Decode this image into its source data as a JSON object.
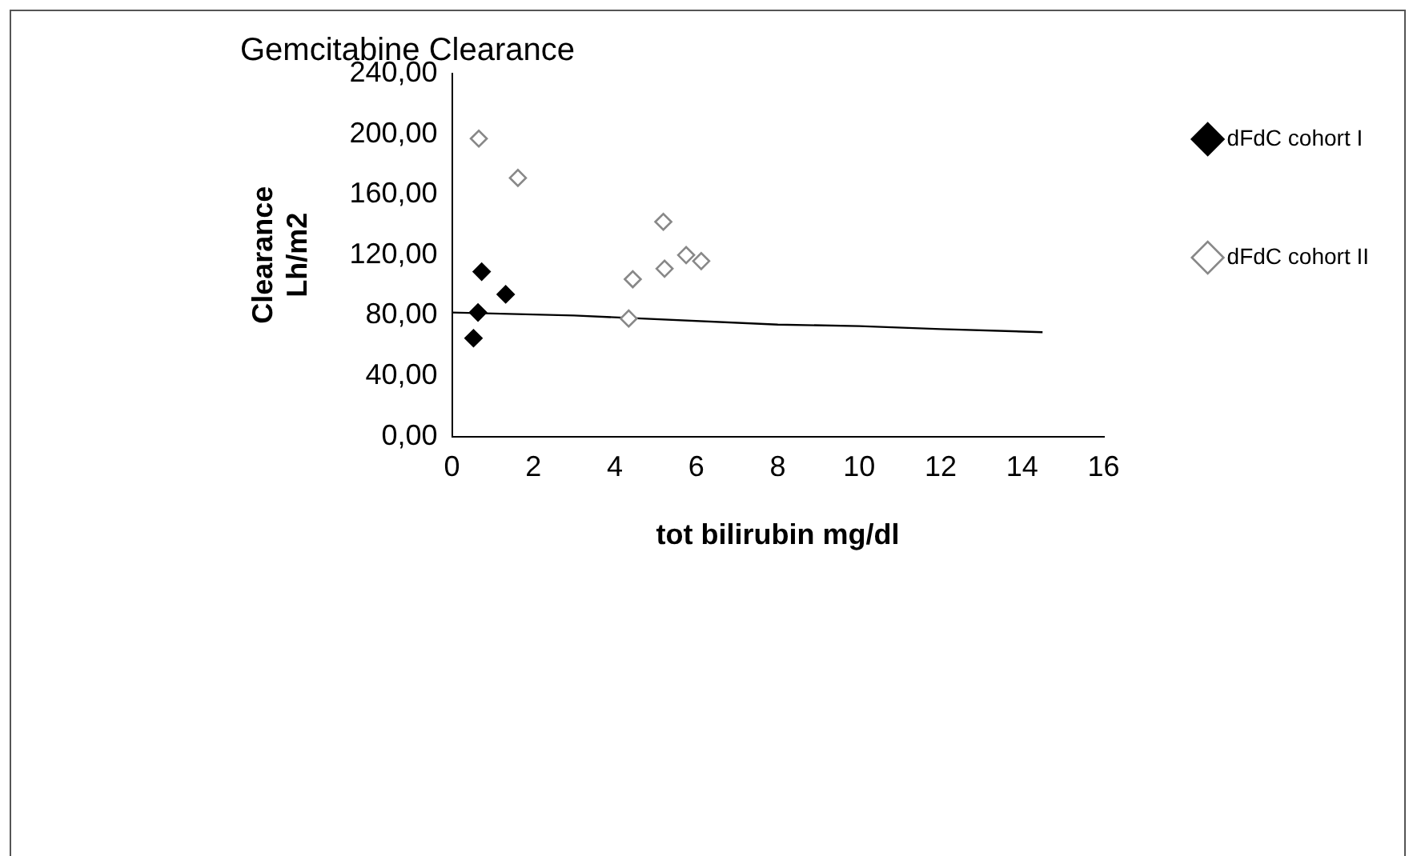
{
  "chart_data": {
    "type": "scatter",
    "title": "Gemcitabine Clearance",
    "xlabel": "tot bilirubin mg/dl",
    "ylabel": "Clearance Lh/m2",
    "xlim": [
      0,
      16
    ],
    "xticks": [
      0,
      2,
      4,
      6,
      8,
      10,
      12,
      14,
      16
    ],
    "ylim": [
      0,
      240
    ],
    "yticks": [
      {
        "value": 0,
        "label": "0,00"
      },
      {
        "value": 40,
        "label": "40,00"
      },
      {
        "value": 80,
        "label": "80,00"
      },
      {
        "value": 120,
        "label": "120,00"
      },
      {
        "value": 160,
        "label": "160,00"
      },
      {
        "value": 200,
        "label": "200,00"
      },
      {
        "value": 240,
        "label": "240,00"
      }
    ],
    "grid": false,
    "legend": "right",
    "marker": "diamond",
    "series": [
      {
        "name": "dFdC cohort I",
        "color": "#000000",
        "x": [
          0.53,
          0.64,
          0.73,
          1.32
        ],
        "values": [
          65,
          82,
          109,
          94
        ]
      },
      {
        "name": "dFdC cohort II",
        "color": "#888888",
        "x": [
          0.66,
          1.62,
          4.34,
          4.44,
          5.19,
          5.22,
          5.75,
          6.12
        ],
        "values": [
          197,
          171,
          78,
          104,
          142,
          111,
          120,
          116
        ]
      },
      {
        "type": "line",
        "color": "#000000",
        "marker": "none",
        "x": [
          0,
          3,
          8,
          10,
          12,
          14.5
        ],
        "values": [
          82,
          80,
          74,
          73,
          71,
          69
        ]
      }
    ]
  }
}
